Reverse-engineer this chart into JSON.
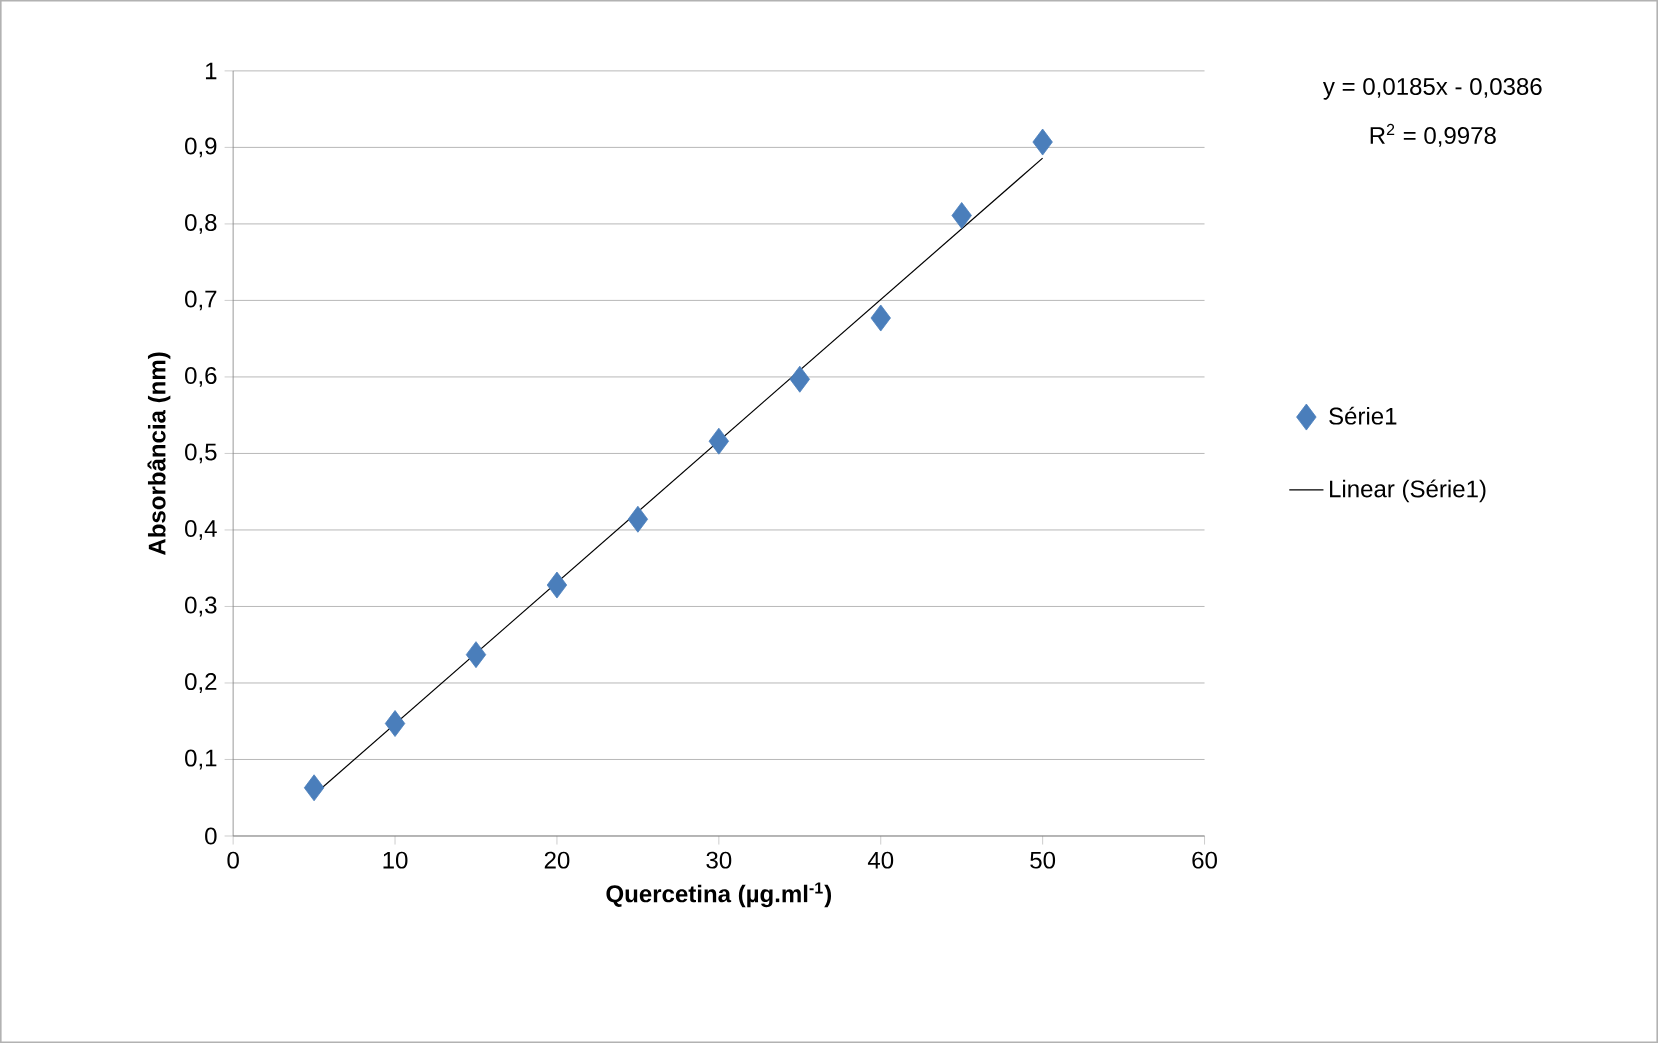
{
  "chart_data": {
    "type": "scatter",
    "xlabel": "Quercetina (µg.ml$^{-1}$)",
    "ylabel": "Absorbância (nm)",
    "series": [
      {
        "name": "Série1",
        "color": "#4a7ebb",
        "marker": "diamond",
        "x": [
          5,
          10,
          15,
          20,
          25,
          30,
          35,
          40,
          45,
          50
        ],
        "values": [
          0.063,
          0.147,
          0.237,
          0.328,
          0.414,
          0.516,
          0.597,
          0.677,
          0.811,
          0.907
        ]
      },
      {
        "name": "Linear (Série1)",
        "type": "line",
        "color": "#000000",
        "marker": "none",
        "line_style": "solid",
        "x": [
          5,
          50
        ],
        "values": [
          0.054,
          0.886
        ]
      }
    ],
    "annotations": [
      "y = 0,0185x - 0,0386",
      "R$^{2}$ = 0,9978"
    ],
    "xlim": [
      0,
      60
    ],
    "xticks": [
      0,
      10,
      20,
      30,
      40,
      50,
      60
    ],
    "ylim": [
      0,
      1
    ],
    "yticks": [
      0,
      {
        "value": 0.1,
        "label": "0,1"
      },
      {
        "value": 0.2,
        "label": "0,2"
      },
      {
        "value": 0.3,
        "label": "0,3"
      },
      {
        "value": 0.4,
        "label": "0,4"
      },
      {
        "value": 0.5,
        "label": "0,5"
      },
      {
        "value": 0.6,
        "label": "0,6"
      },
      {
        "value": 0.7,
        "label": "0,7"
      },
      {
        "value": 0.8,
        "label": "0,8"
      },
      {
        "value": 0.9,
        "label": "0,9"
      },
      1
    ],
    "grid": "y",
    "legend": "right"
  }
}
